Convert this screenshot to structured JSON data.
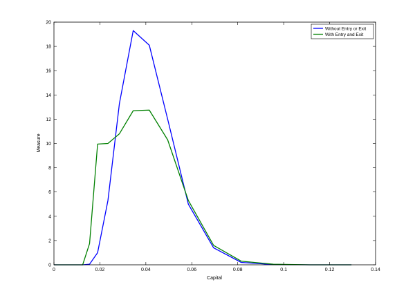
{
  "chart_data": {
    "type": "line",
    "xlabel": "Capital",
    "ylabel": "Measure",
    "xlim": [
      0,
      0.14
    ],
    "ylim": [
      0,
      20
    ],
    "xticks": [
      0,
      0.02,
      0.04,
      0.06,
      0.08,
      0.1,
      0.12,
      0.14
    ],
    "xtick_labels": [
      "0",
      "0.02",
      "0.04",
      "0.06",
      "0.08",
      "0.1",
      "0.12",
      "0.14"
    ],
    "yticks": [
      0,
      2,
      4,
      6,
      8,
      10,
      12,
      14,
      16,
      18,
      20
    ],
    "ytick_labels": [
      "0",
      "2",
      "4",
      "6",
      "8",
      "10",
      "12",
      "14",
      "16",
      "18",
      "20"
    ],
    "grid": false,
    "legend_position": "top-right",
    "series": [
      {
        "name": "Without Entry or Exit",
        "color": "#0000ff",
        "x": [
          0,
          0.0125,
          0.0155,
          0.019,
          0.0235,
          0.0285,
          0.0345,
          0.0415,
          0.0495,
          0.0585,
          0.0695,
          0.0815,
          0.0955,
          0.1115,
          0.1295
        ],
        "y": [
          0,
          0,
          0.05,
          1.0,
          5.3,
          13.3,
          19.3,
          18.1,
          12.0,
          5.0,
          1.4,
          0.2,
          0.02,
          0,
          0
        ]
      },
      {
        "name": "With Entry and Exit",
        "color": "#008000",
        "x": [
          0,
          0.0125,
          0.0155,
          0.019,
          0.0235,
          0.0285,
          0.0345,
          0.0415,
          0.0495,
          0.0585,
          0.0695,
          0.0815,
          0.0955,
          0.1115,
          0.1295
        ],
        "y": [
          0,
          0,
          1.75,
          9.95,
          10.0,
          10.8,
          12.7,
          12.75,
          10.3,
          5.3,
          1.6,
          0.3,
          0.05,
          0,
          0
        ]
      }
    ]
  }
}
